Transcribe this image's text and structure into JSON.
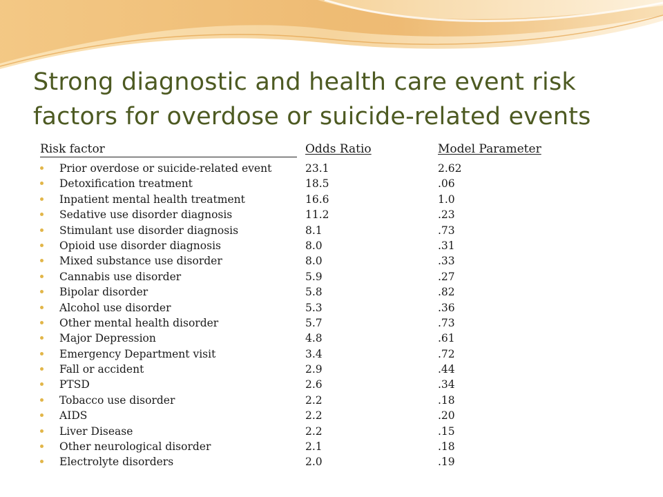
{
  "slide": {
    "title_line1": "Strong diagnostic and health care event risk",
    "title_line2": "factors for overdose or suicide-related events"
  },
  "table": {
    "headers": {
      "risk_factor": "Risk factor",
      "odds_ratio": "Odds Ratio",
      "model_parameter": "Model Parameter"
    },
    "rows": [
      {
        "factor": "Prior overdose or suicide-related event",
        "odds": "23.1",
        "param": "2.62"
      },
      {
        "factor": "Detoxification treatment",
        "odds": "18.5",
        "param": ".06"
      },
      {
        "factor": "Inpatient mental health treatment",
        "odds": "16.6",
        "param": "1.0"
      },
      {
        "factor": "Sedative use disorder diagnosis",
        "odds": "11.2",
        "param": ".23"
      },
      {
        "factor": "Stimulant use disorder diagnosis",
        "odds": "8.1",
        "param": ".73"
      },
      {
        "factor": "Opioid use disorder diagnosis",
        "odds": "8.0",
        "param": ".31"
      },
      {
        "factor": "Mixed substance use disorder",
        "odds": "8.0",
        "param": ".33"
      },
      {
        "factor": "Cannabis use disorder",
        "odds": "5.9",
        "param": ".27"
      },
      {
        "factor": "Bipolar disorder",
        "odds": "5.8",
        "param": ".82"
      },
      {
        "factor": "Alcohol use disorder",
        "odds": "5.3",
        "param": ".36"
      },
      {
        "factor": "Other mental health disorder",
        "odds": "5.7",
        "param": ".73"
      },
      {
        "factor": "Major Depression",
        "odds": "4.8",
        "param": ".61"
      },
      {
        "factor": "Emergency Department visit",
        "odds": "3.4",
        "param": ".72"
      },
      {
        "factor": "Fall or accident",
        "odds": "2.9",
        "param": ".44"
      },
      {
        "factor": "PTSD",
        "odds": "2.6",
        "param": ".34"
      },
      {
        "factor": "Tobacco use disorder",
        "odds": "2.2",
        "param": ".18"
      },
      {
        "factor": "AIDS",
        "odds": "2.2",
        "param": ".20"
      },
      {
        "factor": "Liver Disease",
        "odds": "2.2",
        "param": ".15"
      },
      {
        "factor": "Other neurological disorder",
        "odds": "2.1",
        "param": ".18"
      },
      {
        "factor": "Electrolyte disorders",
        "odds": "2.0",
        "param": ".19"
      }
    ]
  },
  "colors": {
    "title": "#4d5a22",
    "bullet": "#e2b649",
    "swoosh_light": "#fbe9c4",
    "swoosh_mid": "#f3c98a",
    "swoosh_dark": "#e8a95a"
  }
}
